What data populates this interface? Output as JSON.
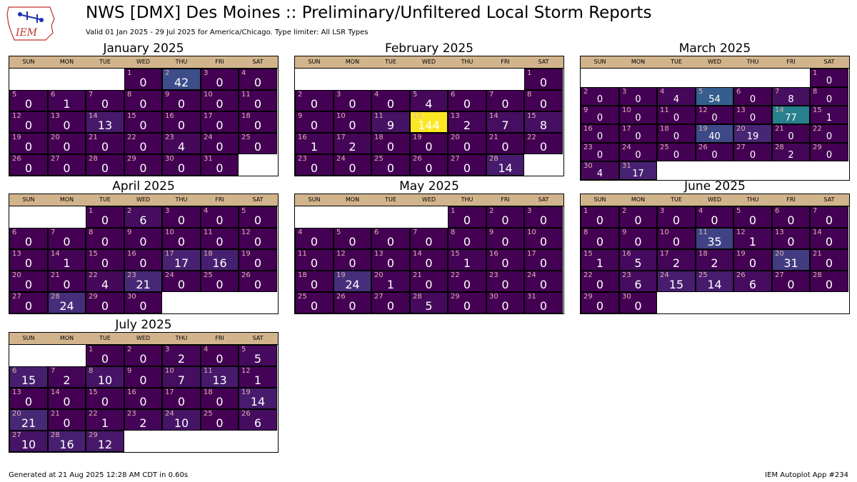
{
  "header": {
    "title": "NWS [DMX] Des Moines :: Preliminary/Unfiltered Local Storm Reports",
    "subtitle": "Valid 01 Jan 2025 - 29 Jul 2025 for America/Chicago. Type limiter: All LSR Types",
    "logo_text": "IEM"
  },
  "footer": {
    "left": "Generated at 21 Aug 2025 12:28 AM CDT in 0.60s",
    "right": "IEM Autoplot App #234"
  },
  "chart_data": {
    "type": "heatmap",
    "colormap": "viridis",
    "vmax": 144,
    "weekday_labels": [
      "SUN",
      "MON",
      "TUE",
      "WED",
      "THU",
      "FRI",
      "SAT"
    ],
    "months": [
      {
        "name": "January 2025",
        "start_weekday": 3,
        "counts": [
          0,
          42,
          0,
          0,
          0,
          1,
          0,
          0,
          0,
          0,
          0,
          0,
          0,
          13,
          0,
          0,
          0,
          0,
          0,
          0,
          0,
          0,
          4,
          0,
          0,
          0,
          0,
          0,
          0,
          0,
          0
        ]
      },
      {
        "name": "February 2025",
        "start_weekday": 6,
        "counts": [
          0,
          0,
          0,
          0,
          4,
          0,
          0,
          0,
          0,
          0,
          9,
          144,
          2,
          7,
          8,
          1,
          2,
          0,
          0,
          0,
          0,
          0,
          0,
          0,
          0,
          0,
          0,
          14
        ]
      },
      {
        "name": "March 2025",
        "start_weekday": 6,
        "counts": [
          0,
          0,
          0,
          4,
          54,
          0,
          8,
          0,
          0,
          0,
          0,
          0,
          0,
          77,
          1,
          0,
          0,
          0,
          40,
          19,
          0,
          0,
          0,
          0,
          0,
          0,
          0,
          2,
          0,
          4,
          17
        ]
      },
      {
        "name": "April 2025",
        "start_weekday": 2,
        "counts": [
          0,
          6,
          0,
          0,
          0,
          0,
          0,
          0,
          0,
          0,
          0,
          0,
          0,
          1,
          0,
          0,
          17,
          16,
          0,
          0,
          0,
          4,
          21,
          0,
          0,
          0,
          0,
          24,
          0,
          0
        ]
      },
      {
        "name": "May 2025",
        "start_weekday": 4,
        "counts": [
          0,
          0,
          0,
          0,
          0,
          0,
          0,
          0,
          0,
          0,
          0,
          0,
          0,
          0,
          1,
          0,
          0,
          0,
          24,
          1,
          0,
          0,
          0,
          0,
          0,
          0,
          0,
          5,
          0,
          0,
          0
        ]
      },
      {
        "name": "June 2025",
        "start_weekday": 0,
        "counts": [
          0,
          0,
          0,
          0,
          0,
          0,
          0,
          0,
          0,
          0,
          35,
          1,
          0,
          0,
          1,
          5,
          2,
          2,
          0,
          31,
          0,
          0,
          6,
          15,
          14,
          6,
          0,
          0,
          0,
          0
        ]
      },
      {
        "name": "July 2025",
        "start_weekday": 2,
        "counts": [
          0,
          0,
          2,
          0,
          5,
          15,
          2,
          10,
          0,
          7,
          13,
          1,
          0,
          0,
          0,
          0,
          0,
          0,
          14,
          21,
          0,
          1,
          2,
          10,
          0,
          6,
          10,
          16,
          12
        ]
      }
    ]
  }
}
